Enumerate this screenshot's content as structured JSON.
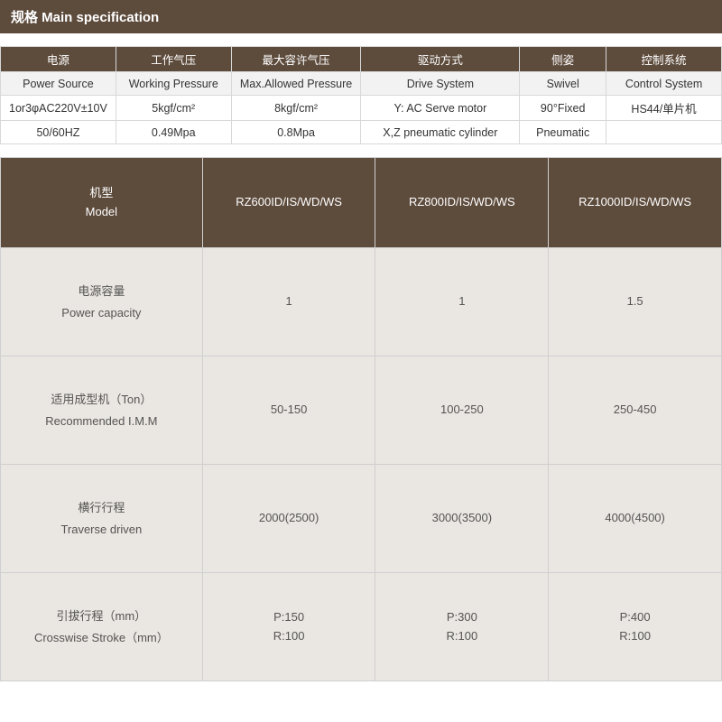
{
  "title": "规格 Main specification",
  "spec": {
    "headers_cn": [
      "电源",
      "工作气压",
      "最大容许气压",
      "驱动方式",
      "侧姿",
      "控制系统"
    ],
    "headers_en": [
      "Power Source",
      "Working Pressure",
      "Max.Allowed Pressure",
      "Drive System",
      "Swivel",
      "Control System"
    ],
    "rows": [
      [
        "1or3φAC220V±10V",
        "5kgf/cm²",
        "8kgf/cm²",
        "Y: AC Serve motor",
        "90°Fixed",
        "HS44/单片机"
      ],
      [
        "50/60HZ",
        "0.49Mpa",
        "0.8Mpa",
        "X,Z pneumatic cylinder",
        "Pneumatic",
        ""
      ]
    ],
    "col_widths_pct": [
      16,
      16,
      18,
      22,
      12,
      16
    ]
  },
  "model": {
    "corner_cn": "机型",
    "corner_en": "Model",
    "models": [
      "RZ600ID/IS/WD/WS",
      "RZ800ID/IS/WD/WS",
      "RZ1000ID/IS/WD/WS"
    ],
    "rows": [
      {
        "label_cn": "电源容量",
        "label_en": "Power capacity",
        "vals": [
          "1",
          "1",
          "1.5"
        ]
      },
      {
        "label_cn": "适用成型机（Ton）",
        "label_en": "Recommended I.M.M",
        "vals": [
          "50-150",
          "100-250",
          "250-450"
        ]
      },
      {
        "label_cn": "横行行程",
        "label_en": "Traverse driven",
        "vals": [
          "2000(2500)",
          "3000(3500)",
          "4000(4500)"
        ]
      },
      {
        "label_cn": "引拔行程（mm）",
        "label_en": "Crosswise Stroke（mm）",
        "vals": [
          "P:150\nR:100",
          "P:300\nR:100",
          "P:400\nR:100"
        ]
      }
    ]
  },
  "colors": {
    "header_bg": "#5d4b3c",
    "header_fg": "#ffffff",
    "body_bg": "#eae6e1",
    "border": "#d0d0d0"
  }
}
